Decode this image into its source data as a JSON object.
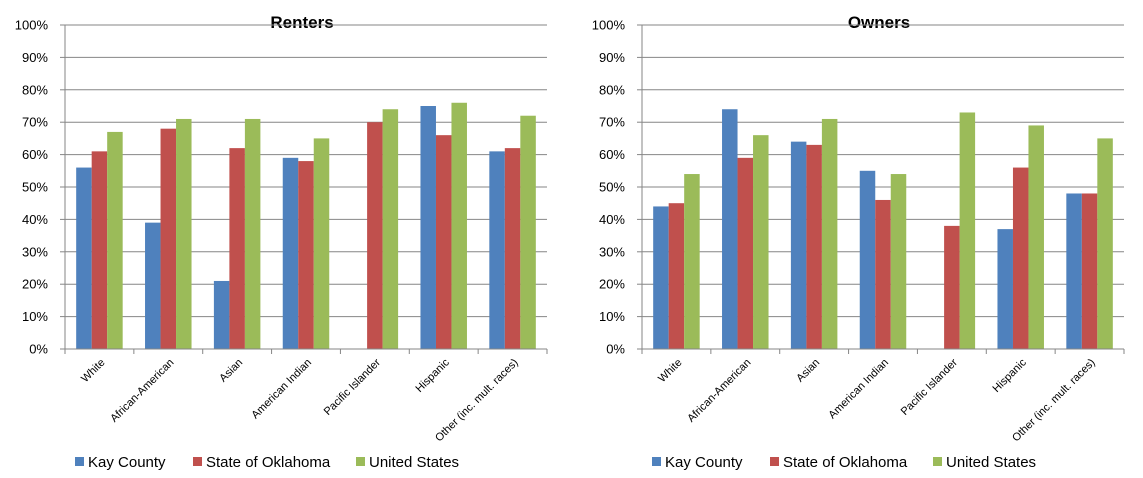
{
  "chart_data": [
    {
      "type": "bar",
      "title": "Renters",
      "categories": [
        "White",
        "African-American",
        "Asian",
        "American Indian",
        "Pacific Islander",
        "Hispanic",
        "Other (inc. mult. races)"
      ],
      "series": [
        {
          "name": "Kay County",
          "color": "#4F81BD",
          "values": [
            56,
            39,
            21,
            59,
            null,
            75,
            61
          ]
        },
        {
          "name": "State of Oklahoma",
          "color": "#C0504D",
          "values": [
            61,
            68,
            62,
            58,
            70,
            66,
            62
          ]
        },
        {
          "name": "United States",
          "color": "#9BBB59",
          "values": [
            67,
            71,
            71,
            65,
            74,
            76,
            72
          ]
        }
      ],
      "yticks": [
        "0%",
        "10%",
        "20%",
        "30%",
        "40%",
        "50%",
        "60%",
        "70%",
        "80%",
        "90%",
        "100%"
      ],
      "ylim": [
        0,
        100
      ],
      "grid": true,
      "legend_position": "bottom"
    },
    {
      "type": "bar",
      "title": "Owners",
      "categories": [
        "White",
        "African-American",
        "Asian",
        "American Indian",
        "Pacific Islander",
        "Hispanic",
        "Other (inc. mult. races)"
      ],
      "series": [
        {
          "name": "Kay County",
          "color": "#4F81BD",
          "values": [
            44,
            74,
            64,
            55,
            null,
            37,
            48
          ]
        },
        {
          "name": "State of Oklahoma",
          "color": "#C0504D",
          "values": [
            45,
            59,
            63,
            46,
            38,
            56,
            48
          ]
        },
        {
          "name": "United States",
          "color": "#9BBB59",
          "values": [
            54,
            66,
            71,
            54,
            73,
            69,
            65
          ]
        }
      ],
      "yticks": [
        "0%",
        "10%",
        "20%",
        "30%",
        "40%",
        "50%",
        "60%",
        "70%",
        "80%",
        "90%",
        "100%"
      ],
      "ylim": [
        0,
        100
      ],
      "grid": true,
      "legend_position": "bottom"
    }
  ]
}
